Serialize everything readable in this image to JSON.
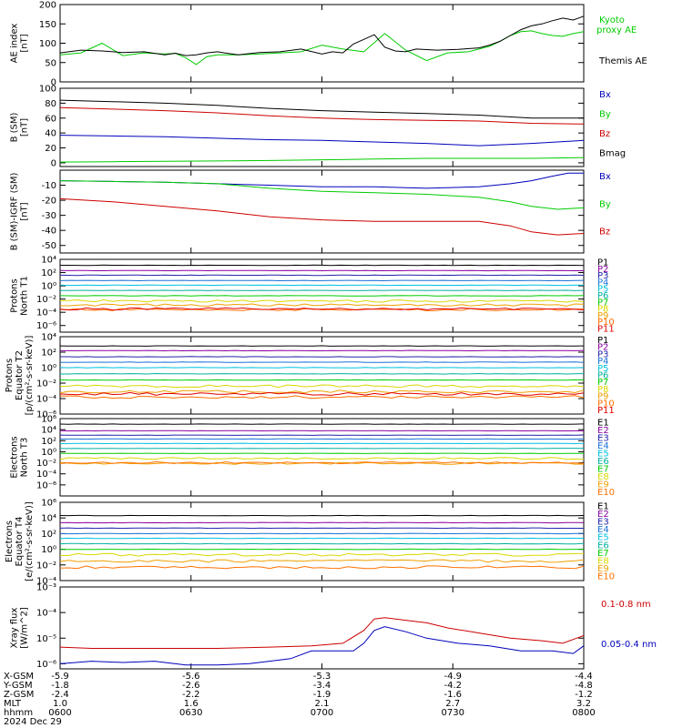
{
  "colors": {
    "black": "#000000",
    "green": "#00cc00",
    "blue": "#0000bb",
    "red": "#cc0000",
    "ch": [
      "#000000",
      "#8a00a0",
      "#2222aa",
      "#1a70d8",
      "#00c0e0",
      "#00b0a0",
      "#00cc00",
      "#d8d800",
      "#f0a000",
      "#ff7000",
      "#e00000"
    ]
  },
  "chart_data": [
    {
      "id": "ae",
      "type": "line",
      "ylabel": [
        "AE index",
        "[nT]"
      ],
      "ylim": [
        0,
        200
      ],
      "yticks": [
        0,
        50,
        100,
        150,
        200
      ],
      "series": [
        {
          "name": "Kyoto proxy AE",
          "color": "green",
          "x": [
            0,
            4,
            8,
            12,
            16,
            20,
            22,
            24,
            26,
            28,
            30,
            34,
            38,
            42,
            46,
            50,
            54,
            58,
            62,
            66,
            70,
            74,
            78,
            80,
            82,
            84,
            86,
            88,
            90,
            92,
            94,
            96,
            98,
            100
          ],
          "y": [
            70,
            75,
            100,
            68,
            75,
            72,
            74,
            62,
            45,
            65,
            70,
            70,
            72,
            75,
            78,
            95,
            85,
            78,
            125,
            82,
            55,
            75,
            78,
            85,
            92,
            105,
            120,
            130,
            132,
            125,
            120,
            118,
            125,
            130
          ]
        },
        {
          "name": "Themis AE",
          "color": "black",
          "x": [
            0,
            4,
            8,
            12,
            16,
            20,
            22,
            24,
            26,
            28,
            30,
            34,
            38,
            42,
            46,
            50,
            52,
            54,
            56,
            58,
            60,
            62,
            64,
            66,
            68,
            72,
            76,
            80,
            82,
            84,
            86,
            88,
            90,
            92,
            94,
            96,
            98,
            100
          ],
          "y": [
            75,
            82,
            80,
            76,
            78,
            70,
            74,
            68,
            70,
            75,
            78,
            70,
            76,
            78,
            85,
            72,
            78,
            75,
            98,
            110,
            122,
            90,
            80,
            78,
            85,
            82,
            84,
            88,
            95,
            105,
            120,
            135,
            145,
            150,
            158,
            165,
            160,
            170
          ]
        }
      ],
      "legend": [
        "Kyoto",
        "proxy AE",
        "Themis AE"
      ]
    },
    {
      "id": "bsm",
      "type": "line",
      "ylabel": [
        "B (SM)",
        "[nT]"
      ],
      "ylim": [
        -5,
        100
      ],
      "yticks": [
        0,
        20,
        40,
        60,
        80,
        100
      ],
      "series": [
        {
          "name": "Bx",
          "color": "blue",
          "x": [
            0,
            10,
            20,
            30,
            40,
            50,
            60,
            70,
            80,
            90,
            100
          ],
          "y": [
            37,
            36,
            35,
            33,
            31,
            30,
            28,
            26,
            23,
            26,
            30
          ]
        },
        {
          "name": "By",
          "color": "green",
          "x": [
            0,
            10,
            20,
            30,
            40,
            50,
            60,
            70,
            80,
            90,
            100
          ],
          "y": [
            1,
            1.5,
            2,
            2.5,
            3,
            4,
            5,
            6,
            6,
            6,
            7
          ]
        },
        {
          "name": "Bz",
          "color": "red",
          "x": [
            0,
            10,
            20,
            30,
            40,
            50,
            60,
            70,
            80,
            90,
            100
          ],
          "y": [
            74,
            72,
            70,
            67,
            63,
            60,
            58,
            57,
            56,
            53,
            52
          ]
        },
        {
          "name": "Bmag",
          "color": "black",
          "x": [
            0,
            10,
            20,
            30,
            40,
            50,
            60,
            70,
            80,
            90,
            100
          ],
          "y": [
            84,
            82,
            80,
            77,
            73,
            70,
            68,
            66,
            64,
            60,
            60
          ]
        }
      ],
      "legend": [
        "Bx",
        "By",
        "Bz",
        "Bmag"
      ]
    },
    {
      "id": "bigrf",
      "type": "line",
      "ylabel": [
        "B (SM)-IGRF (SM)",
        "[nT]"
      ],
      "ylim": [
        -55,
        0
      ],
      "yticks": [
        -50,
        -40,
        -30,
        -20,
        -10
      ],
      "series": [
        {
          "name": "Bx",
          "color": "blue",
          "x": [
            0,
            10,
            20,
            30,
            40,
            50,
            60,
            70,
            80,
            86,
            90,
            94,
            97,
            100
          ],
          "y": [
            -7,
            -7.5,
            -8,
            -9,
            -10,
            -11,
            -11,
            -12,
            -11,
            -9,
            -7,
            -4,
            -2,
            -2
          ]
        },
        {
          "name": "By",
          "color": "green",
          "x": [
            0,
            10,
            20,
            30,
            40,
            50,
            60,
            70,
            80,
            86,
            90,
            95,
            100
          ],
          "y": [
            -7,
            -7.5,
            -8,
            -9,
            -12,
            -14,
            -15,
            -16,
            -18,
            -21,
            -24,
            -26,
            -25
          ]
        },
        {
          "name": "Bz",
          "color": "red",
          "x": [
            0,
            10,
            20,
            30,
            40,
            50,
            60,
            70,
            80,
            86,
            90,
            95,
            100
          ],
          "y": [
            -19,
            -21,
            -24,
            -27,
            -31,
            -33,
            -34,
            -34,
            -34,
            -37,
            -41,
            -43,
            -42
          ]
        }
      ],
      "legend": [
        "Bx",
        "By",
        "Bz"
      ]
    },
    {
      "id": "pn",
      "type": "line",
      "log": true,
      "ylabel": [
        "Protons",
        "North T1"
      ],
      "ylim": [
        -7,
        4
      ],
      "yticks": [
        "10⁴",
        "10²",
        "10⁰",
        "10⁻²",
        "10⁻⁴",
        "10⁻⁶"
      ],
      "ytick_exps": [
        4,
        2,
        0,
        -2,
        -4,
        -6
      ],
      "channel_levels": [
        3.1,
        2.3,
        1.6,
        0.8,
        0.1,
        -0.7,
        -1.5,
        -2.3,
        -2.9,
        -3.6,
        -3.5
      ],
      "legend": [
        "P1",
        "P2",
        "P3",
        "P4",
        "P5",
        "P6",
        "P7",
        "P8",
        "P9",
        "P10",
        "P11"
      ]
    },
    {
      "id": "pe",
      "type": "line",
      "log": true,
      "ylabel": [
        "Protons",
        "Equator T2",
        "[p/(cm²-s-sr-keV)]"
      ],
      "ylim": [
        -6,
        4
      ],
      "yticks": [
        "10⁴",
        "10²",
        "10⁰",
        "10⁻²",
        "10⁻⁴",
        "10⁻⁶"
      ],
      "ytick_exps": [
        4,
        2,
        0,
        -2,
        -4,
        -6
      ],
      "channel_levels": [
        2.8,
        2.2,
        1.4,
        0.7,
        0.0,
        -0.8,
        -1.6,
        -2.4,
        -3.1,
        -3.8,
        -3.4
      ],
      "legend": [
        "P1",
        "P2",
        "P3",
        "P4",
        "P5",
        "P6",
        "P7",
        "P8",
        "P9",
        "P10",
        "P11"
      ]
    },
    {
      "id": "en",
      "type": "line",
      "log": true,
      "ylabel": [
        "Electrons",
        "North T3"
      ],
      "ylim": [
        -8,
        6
      ],
      "yticks": [
        "10⁶",
        "10⁴",
        "10²",
        "10⁰",
        "10⁻²",
        "10⁻⁴",
        "10⁻⁶"
      ],
      "ytick_exps": [
        6,
        4,
        2,
        0,
        -2,
        -4,
        -6
      ],
      "channel_levels": [
        5.0,
        3.8,
        3.0,
        2.3,
        1.5,
        0.6,
        -0.3,
        -1.2,
        -2.1,
        -2.0
      ],
      "legend": [
        "E1",
        "E2",
        "E3",
        "E4",
        "E5",
        "E6",
        "E7",
        "E8",
        "E9",
        "E10"
      ]
    },
    {
      "id": "ee",
      "type": "line",
      "log": true,
      "ylabel": [
        "Electrons",
        "Equator T4",
        "[e/(cm²-s-sr-keV)]"
      ],
      "ylim": [
        -4,
        6
      ],
      "yticks": [
        "10⁶",
        "10⁴",
        "10²",
        "10⁰",
        "10⁻²",
        "10⁻⁴"
      ],
      "ytick_exps": [
        6,
        4,
        2,
        0,
        -2,
        -4
      ],
      "channel_levels": [
        4.3,
        3.4,
        2.7,
        2.0,
        1.4,
        0.7,
        0.0,
        -0.7,
        -1.5,
        -2.3
      ],
      "legend": [
        "E1",
        "E2",
        "E3",
        "E4",
        "E5",
        "E6",
        "E7",
        "E8",
        "E9",
        "E10"
      ]
    },
    {
      "id": "xray",
      "type": "line",
      "log": true,
      "ylabel": [
        "Xray flux",
        "[W/m^2]"
      ],
      "ylim": [
        -6.2,
        -3
      ],
      "yticks": [
        "10⁻³",
        "10⁻⁴",
        "10⁻⁵",
        "10⁻⁶"
      ],
      "ytick_exps": [
        -3,
        -4,
        -5,
        -6
      ],
      "series": [
        {
          "name": "0.1-0.8 nm",
          "color": "red",
          "x": [
            0,
            6,
            12,
            20,
            30,
            40,
            48,
            54,
            58,
            60,
            62,
            66,
            70,
            74,
            80,
            86,
            92,
            96,
            100
          ],
          "y": [
            -5.35,
            -5.4,
            -5.4,
            -5.4,
            -5.4,
            -5.35,
            -5.3,
            -5.2,
            -4.7,
            -4.25,
            -4.2,
            -4.3,
            -4.4,
            -4.6,
            -4.8,
            -5.0,
            -5.1,
            -5.2,
            -4.9
          ]
        },
        {
          "name": "0.05-0.4 nm",
          "color": "blue",
          "x": [
            0,
            6,
            12,
            18,
            24,
            30,
            36,
            40,
            44,
            48,
            52,
            56,
            58,
            60,
            62,
            66,
            70,
            76,
            82,
            88,
            94,
            98,
            100
          ],
          "y": [
            -6.0,
            -5.9,
            -5.95,
            -5.9,
            -6.05,
            -6.05,
            -6.0,
            -5.9,
            -5.8,
            -5.5,
            -5.5,
            -5.5,
            -5.2,
            -4.7,
            -4.55,
            -4.75,
            -5.0,
            -5.2,
            -5.3,
            -5.5,
            -5.5,
            -5.6,
            -5.3
          ]
        }
      ],
      "legend": [
        "0.1-0.8 nm",
        "0.05-0.4 nm"
      ]
    }
  ],
  "footer": {
    "row_labels": [
      "X-GSM",
      "Y-GSM",
      "Z-GSM",
      "MLT",
      "hhmm"
    ],
    "columns": [
      [
        "-5.9",
        "-1.8",
        "-2.4",
        "1.0",
        "0600"
      ],
      [
        "-5.6",
        "-2.6",
        "-2.2",
        "1.6",
        "0630"
      ],
      [
        "-5.3",
        "-3.4",
        "-1.9",
        "2.1",
        "0700"
      ],
      [
        "-4.9",
        "-4.2",
        "-1.6",
        "2.7",
        "0730"
      ],
      [
        "-4.4",
        "-4.8",
        "-1.2",
        "3.2",
        "0800"
      ]
    ],
    "date": "2024 Dec 29"
  }
}
